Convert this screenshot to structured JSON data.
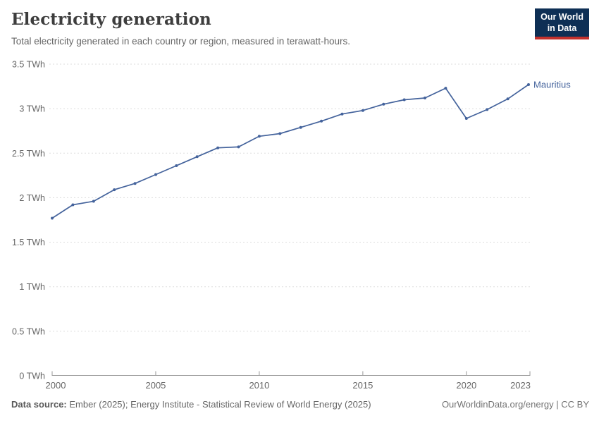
{
  "header": {
    "title": "Electricity generation",
    "subtitle": "Total electricity generated in each country or region, measured in terawatt-hours.",
    "logo": {
      "line1": "Our World",
      "line2": "in Data"
    }
  },
  "chart_data": {
    "type": "line",
    "title": "Electricity generation",
    "subtitle": "Total electricity generated in each country or region, measured in terawatt-hours.",
    "x": [
      2000,
      2001,
      2002,
      2003,
      2004,
      2005,
      2006,
      2007,
      2008,
      2009,
      2010,
      2011,
      2012,
      2013,
      2014,
      2015,
      2016,
      2017,
      2018,
      2019,
      2020,
      2021,
      2022,
      2023
    ],
    "series": [
      {
        "name": "Mauritius",
        "unit": "TWh",
        "values": [
          1.77,
          1.92,
          1.96,
          2.09,
          2.16,
          2.26,
          2.36,
          2.46,
          2.56,
          2.57,
          2.69,
          2.72,
          2.79,
          2.86,
          2.94,
          2.98,
          3.05,
          3.1,
          3.12,
          3.23,
          2.89,
          2.99,
          3.11,
          3.27
        ]
      }
    ],
    "xlabel": "",
    "ylabel": "",
    "ylim": [
      0,
      3.5
    ],
    "yticks": [
      0,
      0.5,
      1,
      1.5,
      2,
      2.5,
      3,
      3.5
    ],
    "ytick_labels": [
      "0 TWh",
      "0.5 TWh",
      "1 TWh",
      "1.5 TWh",
      "2 TWh",
      "2.5 TWh",
      "3 TWh",
      "3.5 TWh"
    ],
    "xticks": [
      2000,
      2005,
      2010,
      2015,
      2020,
      2023
    ],
    "xtick_labels": [
      "2000",
      "2005",
      "2010",
      "2015",
      "2020",
      "2023"
    ],
    "grid": "horizontal-dashed",
    "legend_position": "line-end-label"
  },
  "colors": {
    "line": "#44639c",
    "grid": "#dddddd",
    "axis": "#999999",
    "tick_text": "#666666",
    "entity_label": "#44639c",
    "logo_bg": "#0e2f55",
    "logo_red": "#c3312d"
  },
  "footer": {
    "source_label": "Data source:",
    "source_text": "Ember (2025); Energy Institute - Statistical Review of World Energy (2025)",
    "credit": "OurWorldinData.org/energy | CC BY"
  }
}
